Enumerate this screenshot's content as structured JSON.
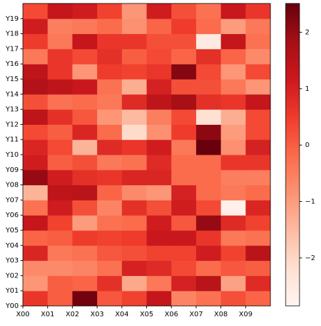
{
  "chart_data": {
    "type": "heatmap",
    "colormap": "Reds",
    "xlim": [
      0,
      10
    ],
    "ylim": [
      0,
      20
    ],
    "xticks": [
      {
        "value": 0,
        "label": "X00"
      },
      {
        "value": 1,
        "label": "X01"
      },
      {
        "value": 2,
        "label": "X02"
      },
      {
        "value": 3,
        "label": "X03"
      },
      {
        "value": 4,
        "label": "X04"
      },
      {
        "value": 5,
        "label": "X05"
      },
      {
        "value": 6,
        "label": "X06"
      },
      {
        "value": 7,
        "label": "X07"
      },
      {
        "value": 8,
        "label": "X08"
      },
      {
        "value": 9,
        "label": "X09"
      }
    ],
    "yticks": [
      {
        "value": 0,
        "label": "Y00"
      },
      {
        "value": 1,
        "label": "Y01"
      },
      {
        "value": 2,
        "label": "Y02"
      },
      {
        "value": 3,
        "label": "Y03"
      },
      {
        "value": 4,
        "label": "Y04"
      },
      {
        "value": 5,
        "label": "Y05"
      },
      {
        "value": 6,
        "label": "Y06"
      },
      {
        "value": 7,
        "label": "Y07"
      },
      {
        "value": 8,
        "label": "Y08"
      },
      {
        "value": 9,
        "label": "Y09"
      },
      {
        "value": 10,
        "label": "Y10"
      },
      {
        "value": 11,
        "label": "Y11"
      },
      {
        "value": 12,
        "label": "Y12"
      },
      {
        "value": 13,
        "label": "Y13"
      },
      {
        "value": 14,
        "label": "Y14"
      },
      {
        "value": 15,
        "label": "Y15"
      },
      {
        "value": 16,
        "label": "Y16"
      },
      {
        "value": 17,
        "label": "Y17"
      },
      {
        "value": 18,
        "label": "Y18"
      },
      {
        "value": 19,
        "label": "Y19"
      }
    ],
    "clim": [
      -2.85,
      2.51
    ],
    "cticks": [
      {
        "value": -2,
        "label": "−2"
      },
      {
        "value": -1,
        "label": "−1"
      },
      0,
      1,
      2
    ],
    "z": [
      [
        0.6,
        0.0,
        2.4,
        0.1,
        0.4,
        1.3,
        -0.6,
        -0.3,
        0.2,
        -0.1
      ],
      [
        -0.9,
        0.0,
        -0.1,
        0.7,
        -1.2,
        -0.4,
        1.0,
        1.5,
        -1.1,
        0.8
      ],
      [
        -0.7,
        -0.7,
        -0.6,
        -0.3,
        1.0,
        0.8,
        0.3,
        -0.2,
        0.1,
        0.0
      ],
      [
        0.9,
        -0.4,
        -0.3,
        0.1,
        0.2,
        0.4,
        0.4,
        1.1,
        0.4,
        1.5
      ],
      [
        -0.1,
        0.0,
        0.5,
        0.4,
        0.5,
        1.2,
        1.2,
        0.6,
        -0.4,
        -0.3
      ],
      [
        1.3,
        0.4,
        -1.0,
        -0.3,
        -0.2,
        1.1,
        0.1,
        2.0,
        0.8,
        0.4
      ],
      [
        -0.3,
        1.1,
        0.2,
        -0.6,
        0.7,
        0.2,
        1.1,
        0.3,
        -2.7,
        0.9
      ],
      [
        -1.4,
        1.4,
        1.5,
        -0.1,
        -0.7,
        -0.9,
        1.0,
        -0.2,
        -0.4,
        -0.2
      ],
      [
        2.0,
        1.1,
        0.7,
        0.6,
        0.9,
        0.9,
        -0.2,
        -0.2,
        -0.5,
        -0.5
      ],
      [
        1.1,
        0.0,
        0.2,
        -0.4,
        -0.3,
        0.8,
        -0.2,
        -0.2,
        0.6,
        0.6
      ],
      [
        0.9,
        0.3,
        -1.4,
        0.8,
        0.6,
        1.1,
        -0.4,
        2.5,
        -0.8,
        1.0
      ],
      [
        0.3,
        0.0,
        0.9,
        -0.2,
        -2.1,
        -0.8,
        0.5,
        2.1,
        -1.0,
        0.3
      ],
      [
        1.4,
        0.7,
        0.1,
        -0.9,
        -1.5,
        -0.5,
        0.3,
        -2.2,
        -1.3,
        0.3
      ],
      [
        0.2,
        -0.3,
        -0.2,
        -0.4,
        0.8,
        1.4,
        1.8,
        0.7,
        0.6,
        1.3
      ],
      [
        1.6,
        1.4,
        1.2,
        -0.3,
        -1.3,
        1.0,
        0.2,
        0.2,
        -0.4,
        -0.9
      ],
      [
        1.4,
        0.6,
        -0.9,
        0.5,
        0.4,
        0.6,
        2.2,
        0.3,
        -0.9,
        0.3
      ],
      [
        -0.4,
        0.6,
        0.3,
        0.7,
        0.0,
        0.3,
        -0.1,
        0.7,
        -0.1,
        -0.7
      ],
      [
        0.5,
        -0.4,
        1.3,
        0.6,
        0.6,
        0.2,
        0.2,
        -2.5,
        1.3,
        -0.3
      ],
      [
        1.1,
        -0.5,
        -0.4,
        -0.2,
        -0.8,
        -0.1,
        0.5,
        -0.2,
        -1.0,
        -0.4
      ],
      [
        0.3,
        1.3,
        1.1,
        0.4,
        -0.9,
        1.1,
        0.2,
        -0.3,
        1.2,
        0.6
      ]
    ]
  }
}
